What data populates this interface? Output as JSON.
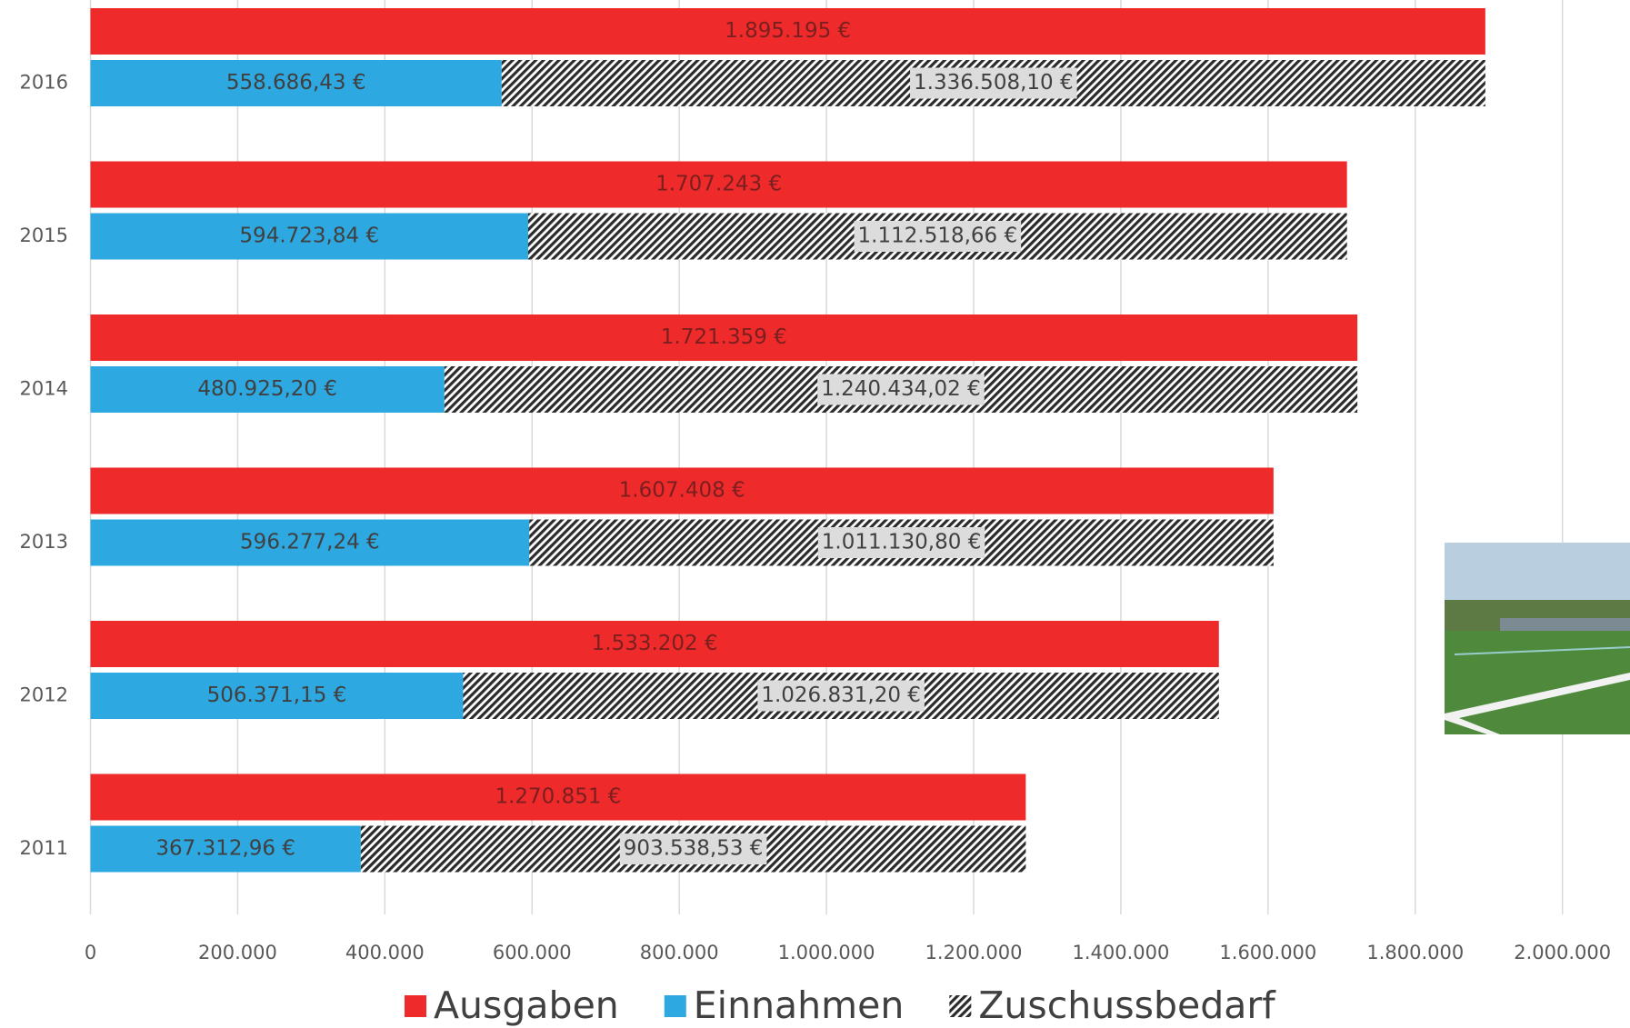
{
  "chart_data": {
    "type": "bar",
    "orientation": "horizontal",
    "categories": [
      "2011",
      "2012",
      "2013",
      "2014",
      "2015",
      "2016"
    ],
    "series": [
      {
        "name": "Ausgaben",
        "color": "#ee2a2b",
        "group": "a",
        "values": [
          1270851,
          1533202,
          1607408,
          1721359,
          1707243,
          1895195
        ],
        "value_labels": [
          "1.270.851 €",
          "1.533.202 €",
          "1.607.408 €",
          "1.721.359 €",
          "1.707.243 €",
          "1.895.195 €"
        ]
      },
      {
        "name": "Einnahmen",
        "color": "#2ea8e0",
        "group": "b",
        "values": [
          367312.96,
          506371.15,
          596277.24,
          480925.2,
          594723.84,
          558686.43
        ],
        "value_labels": [
          "367.312,96 €",
          "506.371,15 €",
          "596.277,24 €",
          "480.925,20 €",
          "594.723,84 €",
          "558.686,43 €"
        ]
      },
      {
        "name": "Zuschussbedarf",
        "color": "#2b2b2b",
        "pattern": "hatch",
        "group": "b",
        "values": [
          903538.53,
          1026831.2,
          1011130.8,
          1240434.02,
          1112518.66,
          1336508.1
        ],
        "value_labels": [
          "903.538,53 €",
          "1.026.831,20 €",
          "1.011.130,80 €",
          "1.240.434,02 €",
          "1.112.518,66 €",
          "1.336.508,10 €"
        ]
      }
    ],
    "xlim": [
      0,
      2000000
    ],
    "xticks": [
      0,
      {
        "value": 200000,
        "label": "200.000"
      },
      {
        "value": 400000,
        "label": "400.000"
      },
      {
        "value": 600000,
        "label": "600.000"
      },
      {
        "value": 800000,
        "label": "800.000"
      },
      {
        "value": 1000000,
        "label": "1.000.000"
      },
      {
        "value": 1200000,
        "label": "1.200.000"
      },
      {
        "value": 1400000,
        "label": "1.400.000"
      },
      {
        "value": 1600000,
        "label": "1.600.000"
      },
      {
        "value": 1800000,
        "label": "1.800.000"
      },
      {
        "value": 2000000,
        "label": "2.000.000"
      }
    ],
    "grid": true,
    "legend": "bottom"
  }
}
